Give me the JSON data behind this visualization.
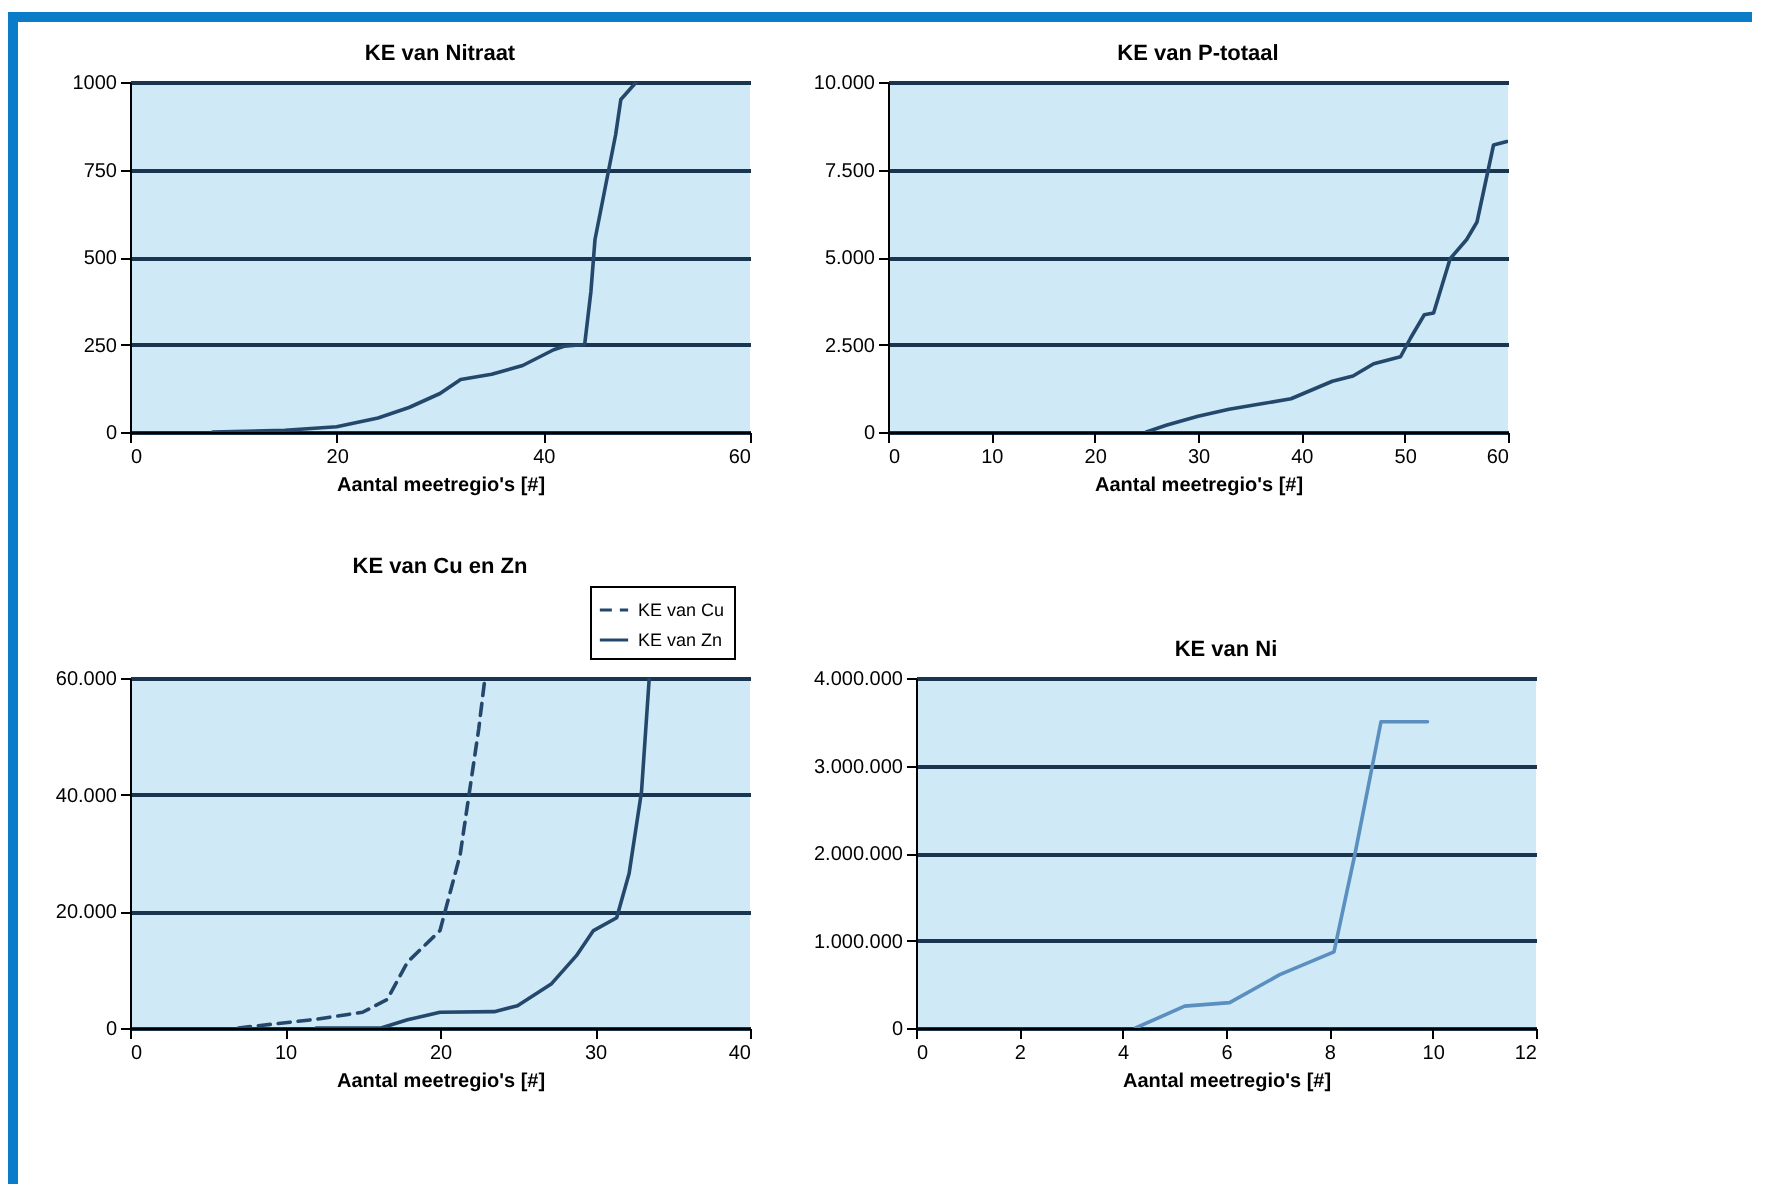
{
  "chart_data": [
    {
      "type": "line",
      "title": "KE van Nitraat",
      "xlabel": "Aantal meetregio's [#]",
      "xlim": [
        0,
        60
      ],
      "xticks": [
        0,
        20,
        40,
        60
      ],
      "ylim": [
        0,
        1000
      ],
      "yticks": [
        0,
        250,
        500,
        750,
        1000
      ],
      "grid": "y",
      "series": [
        {
          "color": "#24486c",
          "x": [
            8,
            15,
            20,
            24,
            27,
            30,
            32,
            35,
            38,
            41,
            42,
            44,
            44.6,
            45,
            46,
            47,
            47.5,
            49
          ],
          "values": [
            0,
            5,
            15,
            40,
            70,
            110,
            150,
            165,
            190,
            235,
            245,
            250,
            400,
            550,
            700,
            850,
            950,
            1000
          ]
        }
      ]
    },
    {
      "type": "line",
      "title": "KE van P-totaal",
      "xlabel": "Aantal meetregio's [#]",
      "xlim": [
        0,
        60
      ],
      "xticks": [
        0,
        10,
        20,
        30,
        40,
        50,
        60
      ],
      "ylim": [
        0,
        10000
      ],
      "yticks": [
        0,
        {
          "value": 2500,
          "label": "2.500"
        },
        {
          "value": 5000,
          "label": "5.000"
        },
        {
          "value": 7500,
          "label": "7.500"
        },
        {
          "value": 10000,
          "label": "10.000"
        }
      ],
      "grid": "y",
      "series": [
        {
          "color": "#24486c",
          "x": [
            25,
            27,
            30,
            33,
            36,
            39,
            41,
            43,
            45,
            47,
            49.6,
            50.6,
            51.9,
            52.8,
            54.4,
            56,
            57,
            58.6,
            59.9
          ],
          "values": [
            0,
            200,
            450,
            650,
            800,
            950,
            1200,
            1450,
            1600,
            1950,
            2150,
            2700,
            3350,
            3400,
            4950,
            5500,
            6000,
            8200,
            8300
          ]
        }
      ]
    },
    {
      "type": "line",
      "title": "KE van Cu en Zn",
      "xlabel": "Aantal meetregio's [#]",
      "xlim": [
        0,
        40
      ],
      "xticks": [
        0,
        10,
        20,
        30,
        40
      ],
      "ylim": [
        0,
        60000
      ],
      "yticks": [
        0,
        {
          "value": 20000,
          "label": "20.000"
        },
        {
          "value": 40000,
          "label": "40.000"
        },
        {
          "value": 60000,
          "label": "60.000"
        }
      ],
      "grid": "y",
      "legend": "top right",
      "series": [
        {
          "name": "KE van Cu",
          "color": "#24486c",
          "line_style": "dashed",
          "x": [
            7,
            12,
            15,
            16.6,
            17.9,
            20,
            21.3,
            21.9,
            22.5,
            22.9
          ],
          "values": [
            0,
            1500,
            2700,
            4900,
            11300,
            16700,
            29700,
            40500,
            51300,
            60000
          ]
        },
        {
          "name": "KE van Zn",
          "color": "#24486c",
          "line_style": "solid",
          "x": [
            12,
            16.2,
            17.9,
            20,
            23.5,
            25,
            27.2,
            28.8,
            29.9,
            31.4,
            32.2,
            33,
            33.5
          ],
          "values": [
            0,
            0,
            1400,
            2700,
            2800,
            3800,
            7600,
            12400,
            16700,
            18900,
            26500,
            40500,
            60000
          ]
        }
      ]
    },
    {
      "type": "line",
      "title": "KE van Ni",
      "xlabel": "Aantal meetregio's [#]",
      "xlim": [
        0,
        12
      ],
      "xticks": [
        0,
        2,
        4,
        6,
        8,
        10,
        12
      ],
      "ylim": [
        0,
        4000000
      ],
      "yticks": [
        0,
        {
          "value": 1000000,
          "label": "1.000.000"
        },
        {
          "value": 2000000,
          "label": "2.000.000"
        },
        {
          "value": 3000000,
          "label": "3.000.000"
        },
        {
          "value": 4000000,
          "label": "4.000.000"
        }
      ],
      "grid": "y",
      "series": [
        {
          "color": "#5b8fc0",
          "x": [
            4.25,
            5.2,
            6.07,
            7.04,
            8.09,
            8.5,
            9,
            9.9
          ],
          "values": [
            0,
            250000,
            290000,
            610000,
            870000,
            2000000,
            3500000,
            3500000
          ]
        }
      ]
    }
  ]
}
